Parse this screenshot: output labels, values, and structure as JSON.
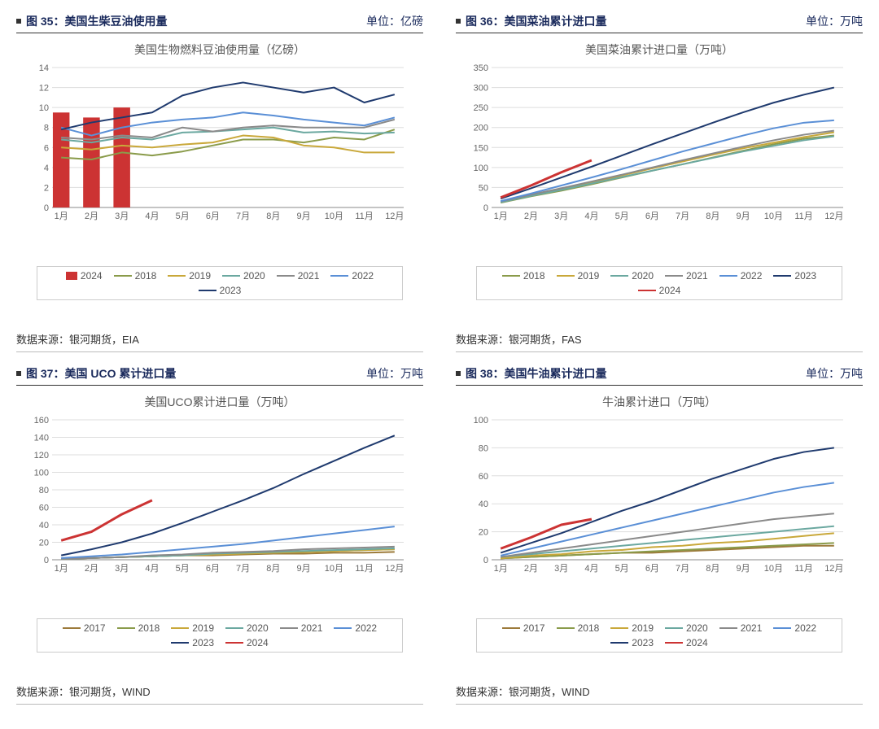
{
  "months": [
    "1月",
    "2月",
    "3月",
    "4月",
    "5月",
    "6月",
    "7月",
    "8月",
    "9月",
    "10月",
    "11月",
    "12月"
  ],
  "colors": {
    "c2017": "#9c7a3a",
    "c2018": "#8a9b4a",
    "c2019": "#c9a83a",
    "c2020": "#6ba8a0",
    "c2021": "#8a8a8a",
    "c2022": "#5a8fd6",
    "c2023": "#1f3a6e",
    "c2024": "#cc3333",
    "grid": "#dddddd",
    "axis": "#888888",
    "text": "#666666",
    "bg": "#ffffff"
  },
  "fig35": {
    "label": "图 35：美国生柴豆油使用量",
    "unit": "单位：亿磅",
    "chart_title": "美国生物燃料豆油使用量（亿磅）",
    "source": "数据来源：银河期货，EIA",
    "ylim": [
      0,
      14
    ],
    "ytick_step": 2,
    "bar2024": [
      9.5,
      9.0,
      10.0
    ],
    "series": [
      {
        "name": "2018",
        "color": "#8a9b4a",
        "data": [
          5.0,
          4.8,
          5.5,
          5.2,
          5.6,
          6.2,
          6.8,
          6.8,
          6.5,
          7.0,
          6.8,
          7.8
        ]
      },
      {
        "name": "2019",
        "color": "#c9a83a",
        "data": [
          6.0,
          5.8,
          6.2,
          6.0,
          6.3,
          6.5,
          7.2,
          7.0,
          6.2,
          6.0,
          5.5,
          5.5
        ]
      },
      {
        "name": "2020",
        "color": "#6ba8a0",
        "data": [
          6.8,
          6.5,
          7.0,
          6.8,
          7.5,
          7.6,
          7.8,
          8.0,
          7.5,
          7.6,
          7.4,
          7.5
        ]
      },
      {
        "name": "2021",
        "color": "#8a8a8a",
        "data": [
          7.0,
          6.8,
          7.2,
          7.0,
          8.0,
          7.6,
          8.0,
          8.2,
          8.0,
          8.0,
          8.0,
          8.8
        ]
      },
      {
        "name": "2022",
        "color": "#5a8fd6",
        "data": [
          8.0,
          7.2,
          8.0,
          8.5,
          8.8,
          9.0,
          9.5,
          9.2,
          8.8,
          8.5,
          8.2,
          9.0
        ]
      },
      {
        "name": "2023",
        "color": "#1f3a6e",
        "data": [
          7.8,
          8.5,
          9.0,
          9.5,
          11.2,
          12.0,
          12.5,
          12.0,
          11.5,
          12.0,
          10.5,
          11.3
        ]
      }
    ],
    "legend_bar": {
      "name": "2024",
      "color": "#cc3333"
    }
  },
  "fig36": {
    "label": "图 36：美国菜油累计进口量",
    "unit": "单位：万吨",
    "chart_title": "美国菜油累计进口量（万吨）",
    "source": "数据来源：银河期货，FAS",
    "ylim": [
      0,
      350
    ],
    "ytick_step": 50,
    "series": [
      {
        "name": "2018",
        "color": "#8a9b4a",
        "data": [
          12,
          28,
          42,
          58,
          75,
          92,
          108,
          125,
          142,
          158,
          172,
          180
        ]
      },
      {
        "name": "2019",
        "color": "#c9a83a",
        "data": [
          14,
          30,
          46,
          62,
          80,
          98,
          115,
          132,
          148,
          162,
          176,
          188
        ]
      },
      {
        "name": "2020",
        "color": "#6ba8a0",
        "data": [
          13,
          29,
          44,
          60,
          76,
          92,
          108,
          124,
          140,
          154,
          168,
          178
        ]
      },
      {
        "name": "2021",
        "color": "#8a8a8a",
        "data": [
          15,
          32,
          48,
          65,
          82,
          100,
          118,
          135,
          152,
          168,
          182,
          192
        ]
      },
      {
        "name": "2022",
        "color": "#5a8fd6",
        "data": [
          16,
          35,
          55,
          75,
          96,
          118,
          140,
          160,
          180,
          198,
          212,
          218
        ]
      },
      {
        "name": "2023",
        "color": "#1f3a6e",
        "data": [
          22,
          48,
          75,
          102,
          130,
          158,
          185,
          212,
          238,
          262,
          282,
          300
        ]
      },
      {
        "name": "2024",
        "color": "#cc3333",
        "data": [
          25,
          55,
          88,
          118
        ],
        "thick": true
      }
    ]
  },
  "fig37": {
    "label": "图 37：美国 UCO 累计进口量",
    "unit": "单位：万吨",
    "chart_title": "美国UCO累计进口量（万吨）",
    "source": "数据来源：银河期货，WIND",
    "ylim": [
      0,
      160
    ],
    "ytick_step": 20,
    "series": [
      {
        "name": "2017",
        "color": "#9c7a3a",
        "data": [
          1,
          2,
          3,
          4,
          5,
          5,
          6,
          7,
          7,
          8,
          8,
          9
        ]
      },
      {
        "name": "2018",
        "color": "#8a9b4a",
        "data": [
          1,
          2,
          3,
          4,
          5,
          6,
          7,
          8,
          9,
          10,
          11,
          12
        ]
      },
      {
        "name": "2019",
        "color": "#c9a83a",
        "data": [
          1,
          2,
          3,
          4,
          5,
          6,
          7,
          8,
          9,
          10,
          11,
          12
        ]
      },
      {
        "name": "2020",
        "color": "#6ba8a0",
        "data": [
          1,
          2,
          3,
          4,
          5,
          7,
          8,
          9,
          10,
          11,
          12,
          13
        ]
      },
      {
        "name": "2021",
        "color": "#8a8a8a",
        "data": [
          1,
          2,
          3,
          5,
          6,
          8,
          9,
          10,
          12,
          13,
          14,
          15
        ]
      },
      {
        "name": "2022",
        "color": "#5a8fd6",
        "data": [
          2,
          4,
          6,
          9,
          12,
          15,
          18,
          22,
          26,
          30,
          34,
          38
        ]
      },
      {
        "name": "2023",
        "color": "#1f3a6e",
        "data": [
          5,
          12,
          20,
          30,
          42,
          55,
          68,
          82,
          98,
          113,
          128,
          142
        ]
      },
      {
        "name": "2024",
        "color": "#cc3333",
        "data": [
          22,
          32,
          52,
          68
        ],
        "thick": true
      }
    ]
  },
  "fig38": {
    "label": "图 38：美国牛油累计进口量",
    "unit": "单位：万吨",
    "chart_title": "牛油累计进口（万吨）",
    "source": "数据来源：银河期货，WIND",
    "ylim": [
      0,
      100
    ],
    "ytick_step": 20,
    "series": [
      {
        "name": "2017",
        "color": "#9c7a3a",
        "data": [
          1,
          2,
          3,
          4,
          5,
          5,
          6,
          7,
          8,
          9,
          10,
          10
        ]
      },
      {
        "name": "2018",
        "color": "#8a9b4a",
        "data": [
          1,
          2,
          3,
          4,
          5,
          6,
          7,
          8,
          9,
          10,
          11,
          12
        ]
      },
      {
        "name": "2019",
        "color": "#c9a83a",
        "data": [
          1,
          3,
          4,
          6,
          7,
          9,
          10,
          12,
          13,
          15,
          17,
          19
        ]
      },
      {
        "name": "2020",
        "color": "#6ba8a0",
        "data": [
          2,
          4,
          6,
          8,
          10,
          12,
          14,
          16,
          18,
          20,
          22,
          24
        ]
      },
      {
        "name": "2021",
        "color": "#8a8a8a",
        "data": [
          2,
          5,
          8,
          11,
          14,
          17,
          20,
          23,
          26,
          29,
          31,
          33
        ]
      },
      {
        "name": "2022",
        "color": "#5a8fd6",
        "data": [
          3,
          8,
          13,
          18,
          23,
          28,
          33,
          38,
          43,
          48,
          52,
          55
        ]
      },
      {
        "name": "2023",
        "color": "#1f3a6e",
        "data": [
          5,
          12,
          19,
          27,
          35,
          42,
          50,
          58,
          65,
          72,
          77,
          80
        ]
      },
      {
        "name": "2024",
        "color": "#cc3333",
        "data": [
          8,
          16,
          25,
          29
        ],
        "thick": true
      }
    ]
  }
}
